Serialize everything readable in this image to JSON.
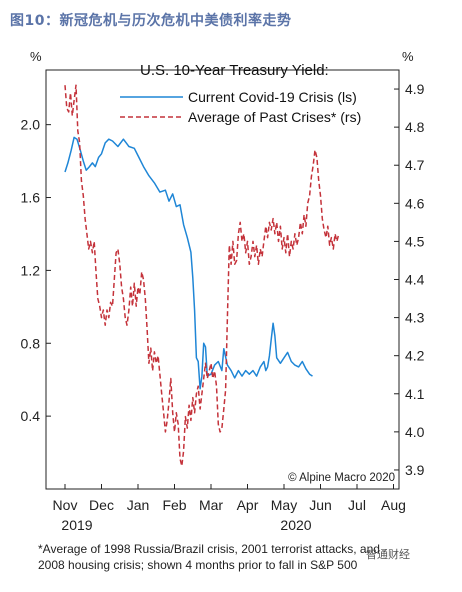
{
  "figure_title": "图10：新冠危机与历次危机中美债利率走势",
  "footnote": {
    "line1": "*Average of 1998 Russia/Brazil crisis, 2001 terrorist attacks, and",
    "line2": "2008 housing crisis; shown 4 months prior to fall in S&P 500"
  },
  "watermark_text": "智通财经",
  "chart_data": {
    "type": "line",
    "title": "U.S. 10-Year Treasury Yield:",
    "credit": "© Alpine Macro 2020",
    "unit_left": "%",
    "unit_right": "%",
    "x_ticks": [
      "Nov",
      "Dec",
      "Jan",
      "Feb",
      "Mar",
      "Apr",
      "May",
      "Jun",
      "Jul",
      "Aug"
    ],
    "x_years": [
      {
        "label": "2019",
        "under": "Nov"
      },
      {
        "label": "2020",
        "under": "May"
      }
    ],
    "y_left": {
      "ticks": [
        "0.4",
        "0.8",
        "1.2",
        "1.6",
        "2.0"
      ],
      "range": [
        0.0,
        2.3
      ]
    },
    "y_right": {
      "ticks": [
        "3.9",
        "4.0",
        "4.1",
        "4.2",
        "4.3",
        "4.4",
        "4.5",
        "4.6",
        "4.7",
        "4.8",
        "4.9"
      ],
      "range": [
        3.85,
        4.95
      ]
    },
    "grid": false,
    "legend_position": "top",
    "series": [
      {
        "name": "Current Covid-19 Crisis (ls)",
        "axis": "left",
        "color": "#1f86d6",
        "style": "solid",
        "points": [
          [
            0,
            1.74
          ],
          [
            0.08,
            1.79
          ],
          [
            0.17,
            1.86
          ],
          [
            0.25,
            1.93
          ],
          [
            0.33,
            1.92
          ],
          [
            0.42,
            1.86
          ],
          [
            0.5,
            1.8
          ],
          [
            0.58,
            1.75
          ],
          [
            0.67,
            1.77
          ],
          [
            0.75,
            1.79
          ],
          [
            0.83,
            1.77
          ],
          [
            0.92,
            1.82
          ],
          [
            1.0,
            1.84
          ],
          [
            1.1,
            1.9
          ],
          [
            1.2,
            1.92
          ],
          [
            1.3,
            1.91
          ],
          [
            1.45,
            1.88
          ],
          [
            1.6,
            1.92
          ],
          [
            1.75,
            1.88
          ],
          [
            1.9,
            1.87
          ],
          [
            2.0,
            1.83
          ],
          [
            2.15,
            1.77
          ],
          [
            2.3,
            1.72
          ],
          [
            2.45,
            1.68
          ],
          [
            2.6,
            1.63
          ],
          [
            2.75,
            1.64
          ],
          [
            2.85,
            1.58
          ],
          [
            2.95,
            1.62
          ],
          [
            3.05,
            1.55
          ],
          [
            3.15,
            1.56
          ],
          [
            3.25,
            1.45
          ],
          [
            3.35,
            1.38
          ],
          [
            3.45,
            1.3
          ],
          [
            3.5,
            1.16
          ],
          [
            3.55,
            0.98
          ],
          [
            3.6,
            0.72
          ],
          [
            3.65,
            0.7
          ],
          [
            3.7,
            0.55
          ],
          [
            3.75,
            0.62
          ],
          [
            3.8,
            0.8
          ],
          [
            3.85,
            0.78
          ],
          [
            3.9,
            0.62
          ],
          [
            4.0,
            0.63
          ],
          [
            4.1,
            0.68
          ],
          [
            4.2,
            0.7
          ],
          [
            4.3,
            0.65
          ],
          [
            4.35,
            0.77
          ],
          [
            4.45,
            0.68
          ],
          [
            4.55,
            0.65
          ],
          [
            4.65,
            0.61
          ],
          [
            4.75,
            0.65
          ],
          [
            4.85,
            0.62
          ],
          [
            4.95,
            0.65
          ],
          [
            5.05,
            0.63
          ],
          [
            5.15,
            0.65
          ],
          [
            5.25,
            0.62
          ],
          [
            5.35,
            0.67
          ],
          [
            5.45,
            0.7
          ],
          [
            5.5,
            0.65
          ],
          [
            5.55,
            0.67
          ],
          [
            5.6,
            0.73
          ],
          [
            5.65,
            0.82
          ],
          [
            5.7,
            0.91
          ],
          [
            5.75,
            0.84
          ],
          [
            5.8,
            0.72
          ],
          [
            5.9,
            0.69
          ],
          [
            6.0,
            0.72
          ],
          [
            6.1,
            0.75
          ],
          [
            6.2,
            0.7
          ],
          [
            6.3,
            0.68
          ],
          [
            6.4,
            0.67
          ],
          [
            6.5,
            0.7
          ],
          [
            6.6,
            0.66
          ],
          [
            6.7,
            0.63
          ],
          [
            6.78,
            0.62
          ]
        ]
      },
      {
        "name": "Average of Past Crises* (rs)",
        "axis": "right",
        "color": "#c4323a",
        "style": "dashed",
        "points": [
          [
            0,
            4.91
          ],
          [
            0.05,
            4.85
          ],
          [
            0.1,
            4.84
          ],
          [
            0.15,
            4.89
          ],
          [
            0.2,
            4.83
          ],
          [
            0.25,
            4.87
          ],
          [
            0.3,
            4.91
          ],
          [
            0.35,
            4.79
          ],
          [
            0.4,
            4.76
          ],
          [
            0.45,
            4.66
          ],
          [
            0.5,
            4.62
          ],
          [
            0.55,
            4.56
          ],
          [
            0.6,
            4.52
          ],
          [
            0.65,
            4.48
          ],
          [
            0.7,
            4.5
          ],
          [
            0.75,
            4.47
          ],
          [
            0.8,
            4.5
          ],
          [
            0.85,
            4.42
          ],
          [
            0.9,
            4.35
          ],
          [
            0.95,
            4.33
          ],
          [
            1.0,
            4.3
          ],
          [
            1.05,
            4.32
          ],
          [
            1.1,
            4.28
          ],
          [
            1.15,
            4.32
          ],
          [
            1.2,
            4.3
          ],
          [
            1.25,
            4.34
          ],
          [
            1.3,
            4.33
          ],
          [
            1.35,
            4.4
          ],
          [
            1.4,
            4.47
          ],
          [
            1.45,
            4.48
          ],
          [
            1.5,
            4.44
          ],
          [
            1.55,
            4.38
          ],
          [
            1.6,
            4.35
          ],
          [
            1.65,
            4.3
          ],
          [
            1.7,
            4.28
          ],
          [
            1.75,
            4.32
          ],
          [
            1.8,
            4.38
          ],
          [
            1.85,
            4.33
          ],
          [
            1.9,
            4.39
          ],
          [
            1.95,
            4.33
          ],
          [
            2.0,
            4.38
          ],
          [
            2.05,
            4.36
          ],
          [
            2.1,
            4.42
          ],
          [
            2.15,
            4.4
          ],
          [
            2.2,
            4.35
          ],
          [
            2.25,
            4.27
          ],
          [
            2.3,
            4.18
          ],
          [
            2.35,
            4.22
          ],
          [
            2.4,
            4.16
          ],
          [
            2.45,
            4.21
          ],
          [
            2.5,
            4.18
          ],
          [
            2.55,
            4.2
          ],
          [
            2.6,
            4.15
          ],
          [
            2.65,
            4.1
          ],
          [
            2.7,
            4.05
          ],
          [
            2.75,
            4.0
          ],
          [
            2.8,
            4.03
          ],
          [
            2.85,
            4.08
          ],
          [
            2.9,
            4.14
          ],
          [
            2.95,
            4.05
          ],
          [
            3.0,
            4.0
          ],
          [
            3.05,
            4.05
          ],
          [
            3.1,
            4.02
          ],
          [
            3.15,
            3.93
          ],
          [
            3.2,
            3.91
          ],
          [
            3.25,
            3.95
          ],
          [
            3.3,
            4.04
          ],
          [
            3.35,
            4.01
          ],
          [
            3.4,
            4.07
          ],
          [
            3.45,
            4.03
          ],
          [
            3.5,
            4.09
          ],
          [
            3.55,
            4.05
          ],
          [
            3.6,
            4.1
          ],
          [
            3.65,
            4.12
          ],
          [
            3.7,
            4.06
          ],
          [
            3.75,
            4.1
          ],
          [
            3.8,
            4.14
          ],
          [
            3.85,
            4.18
          ],
          [
            3.9,
            4.14
          ],
          [
            3.95,
            4.16
          ],
          [
            4.0,
            4.18
          ],
          [
            4.05,
            4.14
          ],
          [
            4.1,
            4.16
          ],
          [
            4.15,
            4.12
          ],
          [
            4.2,
            4.02
          ],
          [
            4.25,
            4.0
          ],
          [
            4.3,
            4.01
          ],
          [
            4.35,
            4.06
          ],
          [
            4.4,
            4.11
          ],
          [
            4.45,
            4.3
          ],
          [
            4.5,
            4.49
          ],
          [
            4.55,
            4.44
          ],
          [
            4.6,
            4.5
          ],
          [
            4.65,
            4.44
          ],
          [
            4.7,
            4.45
          ],
          [
            4.75,
            4.52
          ],
          [
            4.8,
            4.55
          ],
          [
            4.85,
            4.5
          ],
          [
            4.9,
            4.52
          ],
          [
            4.95,
            4.47
          ],
          [
            5.0,
            4.5
          ],
          [
            5.05,
            4.44
          ],
          [
            5.1,
            4.46
          ],
          [
            5.15,
            4.5
          ],
          [
            5.2,
            4.46
          ],
          [
            5.25,
            4.49
          ],
          [
            5.3,
            4.44
          ],
          [
            5.35,
            4.48
          ],
          [
            5.4,
            4.46
          ],
          [
            5.45,
            4.5
          ],
          [
            5.5,
            4.54
          ],
          [
            5.55,
            4.51
          ],
          [
            5.6,
            4.55
          ],
          [
            5.65,
            4.53
          ],
          [
            5.7,
            4.56
          ],
          [
            5.75,
            4.52
          ],
          [
            5.8,
            4.55
          ],
          [
            5.85,
            4.5
          ],
          [
            5.9,
            4.54
          ],
          [
            5.95,
            4.48
          ],
          [
            6.0,
            4.51
          ],
          [
            6.05,
            4.47
          ],
          [
            6.1,
            4.52
          ],
          [
            6.15,
            4.46
          ],
          [
            6.2,
            4.5
          ],
          [
            6.25,
            4.48
          ],
          [
            6.3,
            4.52
          ],
          [
            6.35,
            4.49
          ],
          [
            6.4,
            4.51
          ],
          [
            6.45,
            4.55
          ],
          [
            6.5,
            4.52
          ],
          [
            6.55,
            4.57
          ],
          [
            6.6,
            4.54
          ],
          [
            6.65,
            4.6
          ],
          [
            6.7,
            4.62
          ],
          [
            6.75,
            4.67
          ],
          [
            6.8,
            4.7
          ],
          [
            6.85,
            4.74
          ],
          [
            6.9,
            4.72
          ],
          [
            6.95,
            4.66
          ],
          [
            7.0,
            4.62
          ],
          [
            7.05,
            4.56
          ],
          [
            7.1,
            4.53
          ],
          [
            7.15,
            4.51
          ],
          [
            7.2,
            4.54
          ],
          [
            7.25,
            4.49
          ],
          [
            7.3,
            4.51
          ],
          [
            7.35,
            4.48
          ],
          [
            7.4,
            4.52
          ],
          [
            7.45,
            4.5
          ],
          [
            7.5,
            4.52
          ]
        ]
      }
    ]
  }
}
